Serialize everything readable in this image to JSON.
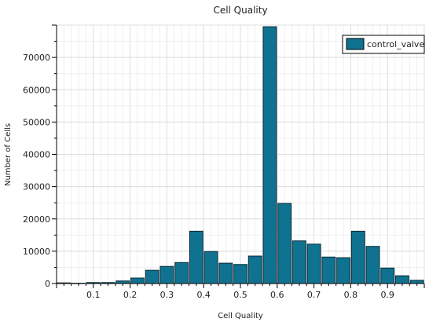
{
  "chart_data": {
    "type": "bar",
    "title": "Cell Quality",
    "xlabel": "Cell Quality",
    "ylabel": "Number of Cells",
    "xlim": [
      0,
      1
    ],
    "ylim": [
      0,
      80000
    ],
    "x_ticks": [
      "0.1",
      "0.2",
      "0.3",
      "0.4",
      "0.5",
      "0.6",
      "0.7",
      "0.8",
      "0.9"
    ],
    "y_ticks": [
      "0",
      "10000",
      "20000",
      "30000",
      "40000",
      "50000",
      "60000",
      "70000"
    ],
    "grid": true,
    "legend_position": "top-right",
    "series": [
      {
        "name": "control_valve",
        "color": "#0f7291",
        "bin_width": 0.04,
        "bin_centers": [
          0.02,
          0.06,
          0.1,
          0.14,
          0.18,
          0.22,
          0.26,
          0.3,
          0.34,
          0.38,
          0.42,
          0.46,
          0.5,
          0.54,
          0.58,
          0.62,
          0.66,
          0.7,
          0.74,
          0.78,
          0.82,
          0.86,
          0.9,
          0.94,
          0.98
        ],
        "values": [
          200,
          100,
          300,
          300,
          800,
          1700,
          4100,
          5300,
          6500,
          16200,
          9900,
          6300,
          5900,
          8500,
          79500,
          24800,
          13200,
          12200,
          8200,
          8000,
          16200,
          11500,
          4800,
          2400,
          1000
        ]
      }
    ]
  }
}
